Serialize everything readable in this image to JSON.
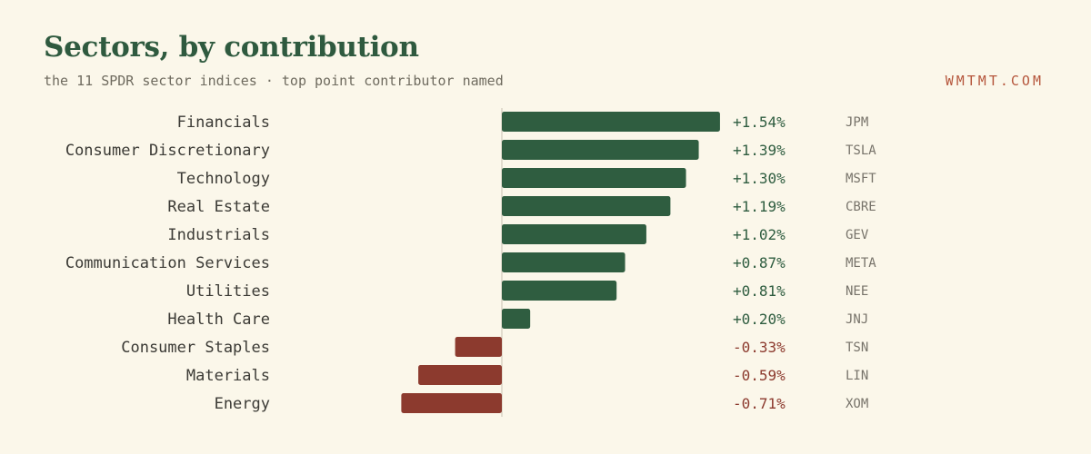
{
  "header": {
    "title": "Sectors, by contribution",
    "subtitle": "the 11 SPDR sector indices · top point contributor named",
    "brand": "WMTMT.COM"
  },
  "colors": {
    "positive": "#2f5d40",
    "negative": "#8c3a2e",
    "axis": "#d9d4c4"
  },
  "chart_data": {
    "type": "bar",
    "orientation": "horizontal",
    "categories": [
      "Financials",
      "Consumer Discretionary",
      "Technology",
      "Real Estate",
      "Industrials",
      "Communication Services",
      "Utilities",
      "Health Care",
      "Consumer Staples",
      "Materials",
      "Energy"
    ],
    "values": [
      1.54,
      1.39,
      1.3,
      1.19,
      1.02,
      0.87,
      0.81,
      0.2,
      -0.33,
      -0.59,
      -0.71
    ],
    "value_labels": [
      "+1.54%",
      "+1.39%",
      "+1.30%",
      "+1.19%",
      "+1.02%",
      "+0.87%",
      "+0.81%",
      "+0.20%",
      "-0.33%",
      "-0.59%",
      "-0.71%"
    ],
    "top_contributors": [
      "JPM",
      "TSLA",
      "MSFT",
      "CBRE",
      "GEV",
      "META",
      "NEE",
      "JNJ",
      "TSN",
      "LIN",
      "XOM"
    ],
    "xlim": [
      -1,
      1.6
    ],
    "unit": "%"
  }
}
